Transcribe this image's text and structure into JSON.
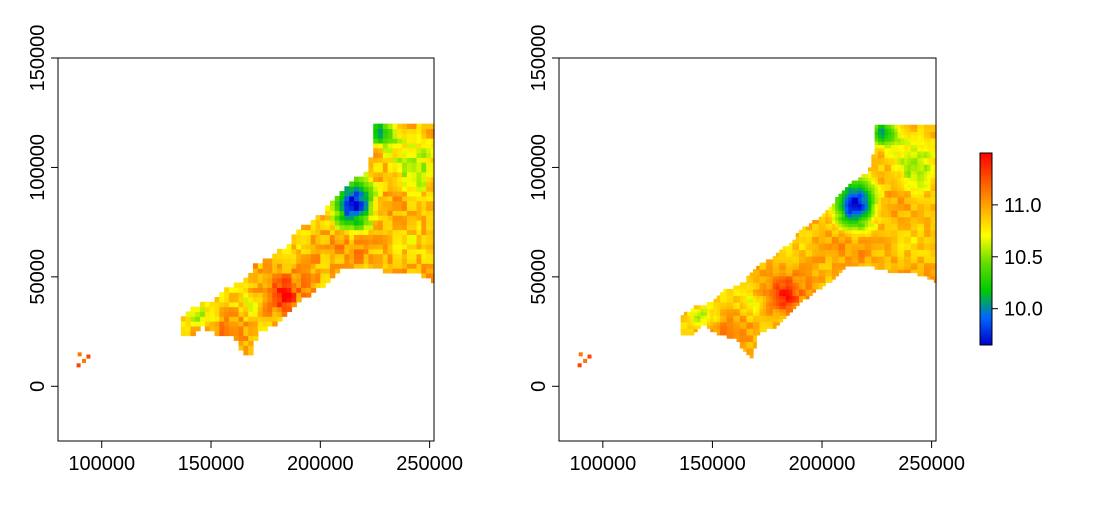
{
  "chart_data": [
    {
      "type": "heatmap",
      "panel": "left",
      "title": "",
      "xlabel": "",
      "ylabel": "",
      "xlim": [
        80000,
        252000
      ],
      "ylim": [
        -25000,
        150000
      ],
      "x_ticks": [
        {
          "value": 100000,
          "label": "100000"
        },
        {
          "value": 150000,
          "label": "150000"
        },
        {
          "value": 200000,
          "label": "200000"
        },
        {
          "value": 250000,
          "label": "250000"
        }
      ],
      "y_ticks": [
        {
          "value": 0,
          "label": "0"
        },
        {
          "value": 50000,
          "label": "50000"
        },
        {
          "value": 100000,
          "label": "100000"
        },
        {
          "value": 150000,
          "label": "150000"
        }
      ],
      "grid": false,
      "smoothing": "coarse"
    },
    {
      "type": "heatmap",
      "panel": "right",
      "title": "",
      "xlabel": "",
      "ylabel": "",
      "xlim": [
        80000,
        252000
      ],
      "ylim": [
        -25000,
        150000
      ],
      "x_ticks": [
        {
          "value": 100000,
          "label": "100000"
        },
        {
          "value": 150000,
          "label": "150000"
        },
        {
          "value": 200000,
          "label": "200000"
        },
        {
          "value": 250000,
          "label": "250000"
        }
      ],
      "y_ticks": [
        {
          "value": 0,
          "label": "0"
        },
        {
          "value": 50000,
          "label": "50000"
        },
        {
          "value": 100000,
          "label": "100000"
        },
        {
          "value": 150000,
          "label": "150000"
        }
      ],
      "grid": false,
      "smoothing": "fine"
    }
  ],
  "colorbar": {
    "range": [
      9.65,
      11.5
    ],
    "ticks": [
      {
        "value": 10.0,
        "label": "10.0"
      },
      {
        "value": 10.5,
        "label": "10.5"
      },
      {
        "value": 11.0,
        "label": "11.0"
      }
    ],
    "colors": [
      "#0000cc",
      "#0066ff",
      "#00cc00",
      "#66dd00",
      "#ffff00",
      "#ffaa00",
      "#ff5500",
      "#ff0000"
    ]
  }
}
